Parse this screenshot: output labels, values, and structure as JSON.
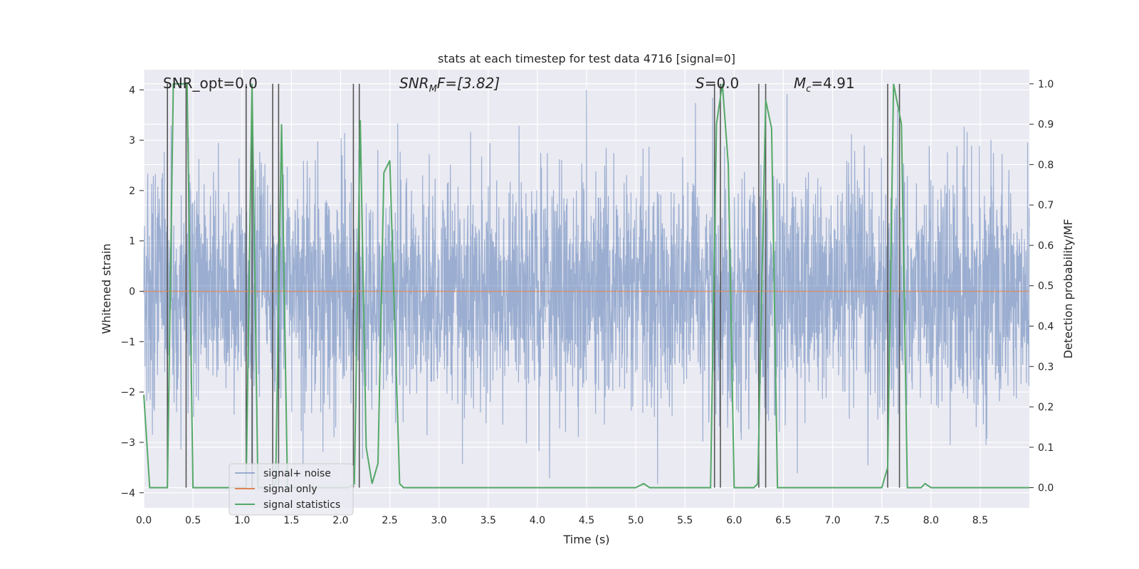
{
  "chart_data": {
    "type": "line",
    "title": "stats at each timestep for test data 4716 [signal=0]",
    "xlabel": "Time (s)",
    "ylabel_left": "Whitened strain",
    "ylabel_right": "Detection probability/MF",
    "xlim": [
      0.0,
      9.0
    ],
    "ylim_left": [
      -4.3,
      4.4
    ],
    "ylim_right": [
      -0.05,
      1.035
    ],
    "x_ticks": [
      "0.0",
      "0.5",
      "1.0",
      "1.5",
      "2.0",
      "2.5",
      "3.0",
      "3.5",
      "4.0",
      "4.5",
      "5.0",
      "5.5",
      "6.0",
      "6.5",
      "7.0",
      "7.5",
      "8.0",
      "8.5"
    ],
    "y_ticks_left": [
      "4",
      "3",
      "2",
      "1",
      "0",
      "−1",
      "−2",
      "−3",
      "−4"
    ],
    "y_ticks_right": [
      "1.0",
      "0.9",
      "0.8",
      "0.7",
      "0.6",
      "0.5",
      "0.4",
      "0.3",
      "0.2",
      "0.1",
      "0.0"
    ],
    "grid": true,
    "annotations": {
      "snr_opt": "SNR_opt=0.0",
      "snr_mf_label": "SNR",
      "snr_mf_sub": "M",
      "snr_mf_tail": "F=[3.82]",
      "s_label": "S",
      "s_value": "=0.0",
      "mc_label": "M",
      "mc_sub": "c",
      "mc_value": "=4.91"
    },
    "legend": {
      "placement": "lower-left",
      "entries": [
        {
          "name": "signal+ noise",
          "color": "#4c72b0"
        },
        {
          "name": "signal only",
          "color": "#dd8452"
        },
        {
          "name": "signal statistics",
          "color": "#55a868"
        }
      ]
    },
    "series": [
      {
        "name": "signal+ noise",
        "axis": "left",
        "description": "whitened strain noise, approx Gaussian, std ~1.1, sampled over 0-9 s"
      },
      {
        "name": "signal only",
        "axis": "left",
        "values_const": 0.0
      },
      {
        "name": "signal statistics",
        "axis": "right",
        "x": [
          0.0,
          0.06,
          0.1,
          0.2,
          0.24,
          0.3,
          0.4,
          0.44,
          0.5,
          0.6,
          1.0,
          1.04,
          1.1,
          1.16,
          1.3,
          1.34,
          1.4,
          1.46,
          1.5,
          1.6,
          2.08,
          2.14,
          2.2,
          2.26,
          2.32,
          2.38,
          2.44,
          2.5,
          2.6,
          2.64,
          3.0,
          4.0,
          5.0,
          5.08,
          5.14,
          5.5,
          5.76,
          5.82,
          5.88,
          5.94,
          6.0,
          6.04,
          6.2,
          6.24,
          6.32,
          6.38,
          6.44,
          6.5,
          7.0,
          7.5,
          7.56,
          7.62,
          7.7,
          7.76,
          7.9,
          7.94,
          8.0,
          9.0
        ],
        "y": [
          0.23,
          0.0,
          0.0,
          0.0,
          0.0,
          1.0,
          1.0,
          1.0,
          0.0,
          0.0,
          0.0,
          0.0,
          1.0,
          0.0,
          0.0,
          0.01,
          0.9,
          0.0,
          0.0,
          0.0,
          0.0,
          0.01,
          0.91,
          0.1,
          0.01,
          0.06,
          0.78,
          0.81,
          0.01,
          0.0,
          0.0,
          0.0,
          0.0,
          0.01,
          0.0,
          0.0,
          0.0,
          0.9,
          1.0,
          0.8,
          0.0,
          0.0,
          0.0,
          0.01,
          0.96,
          0.89,
          0.0,
          0.0,
          0.0,
          0.0,
          0.05,
          1.0,
          0.9,
          0.0,
          0.0,
          0.01,
          0.0,
          0.0
        ]
      }
    ],
    "vertical_markers_s": [
      0.24,
      0.43,
      1.04,
      1.1,
      1.31,
      1.37,
      2.13,
      2.19,
      5.8,
      5.86,
      6.25,
      6.32,
      7.56,
      7.68
    ]
  }
}
